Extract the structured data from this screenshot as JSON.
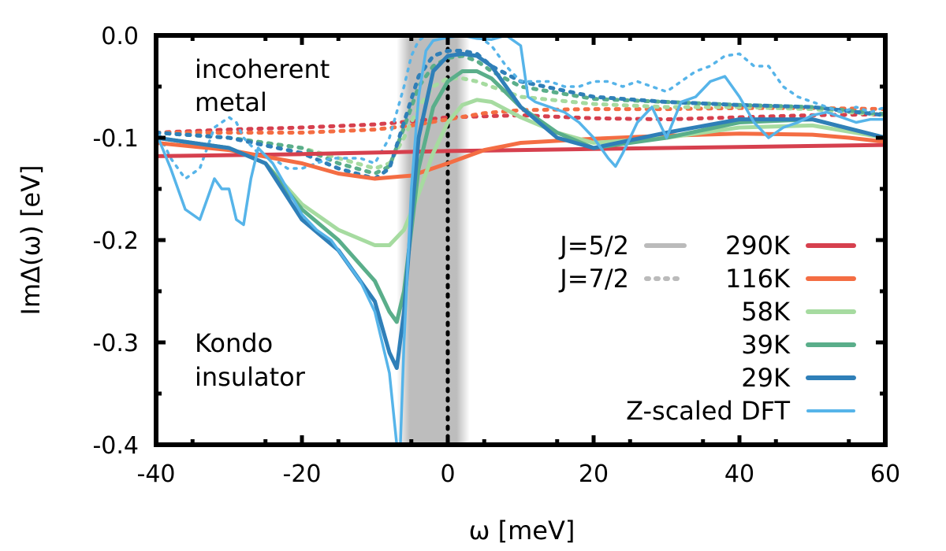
{
  "chart_data": {
    "type": "line",
    "xlabel": "ω [meV]",
    "ylabel": "ImΔ(ω) [eV]",
    "xlim": [
      -40,
      60
    ],
    "ylim": [
      -0.4,
      0.0
    ],
    "xticks": [
      "-40",
      "-20",
      "0",
      "20",
      "40",
      "60"
    ],
    "yticks": [
      "0.0",
      "-0.1",
      "-0.2",
      "-0.3",
      "-0.4"
    ],
    "gap_region": [
      -7,
      3
    ],
    "fermi_level": 0,
    "annotations": [
      "incoherent",
      "metal",
      "Kondo",
      "insulator"
    ],
    "legend_linestyles": [
      {
        "label": "J=5/2",
        "style": "solid",
        "color": "#bbbbbb"
      },
      {
        "label": "J=7/2",
        "style": "dotted",
        "color": "#bbbbbb"
      }
    ],
    "series": [
      {
        "name": "290K",
        "color": "#d6404e",
        "j52": {
          "x": [
            -40,
            -20,
            0,
            20,
            40,
            60
          ],
          "y": [
            -0.118,
            -0.116,
            -0.113,
            -0.111,
            -0.109,
            -0.107
          ]
        },
        "j72": {
          "x": [
            -40,
            -30,
            -20,
            -10,
            -5,
            0,
            10,
            20,
            30,
            40,
            50,
            60
          ],
          "y": [
            -0.095,
            -0.092,
            -0.09,
            -0.087,
            -0.084,
            -0.08,
            -0.078,
            -0.081,
            -0.082,
            -0.08,
            -0.078,
            -0.077
          ]
        }
      },
      {
        "name": "116K",
        "color": "#f46d43",
        "j52": {
          "x": [
            -40,
            -30,
            -20,
            -15,
            -10,
            -5,
            0,
            5,
            10,
            20,
            30,
            40,
            50,
            55,
            60
          ],
          "y": [
            -0.105,
            -0.112,
            -0.125,
            -0.135,
            -0.14,
            -0.137,
            -0.125,
            -0.112,
            -0.105,
            -0.101,
            -0.098,
            -0.096,
            -0.097,
            -0.1,
            -0.104
          ]
        },
        "j72": {
          "x": [
            -40,
            -30,
            -20,
            -10,
            -5,
            0,
            5,
            10,
            20,
            30,
            40,
            50,
            60
          ],
          "y": [
            -0.095,
            -0.095,
            -0.095,
            -0.092,
            -0.088,
            -0.082,
            -0.076,
            -0.073,
            -0.072,
            -0.072,
            -0.071,
            -0.071,
            -0.072
          ]
        }
      },
      {
        "name": "58K",
        "color": "#a6dba0",
        "j52": {
          "x": [
            -40,
            -30,
            -25,
            -20,
            -15,
            -10,
            -8,
            -6,
            -4,
            -2,
            0,
            2,
            4,
            6,
            10,
            15,
            20,
            30,
            40,
            50,
            60
          ],
          "y": [
            -0.1,
            -0.11,
            -0.125,
            -0.165,
            -0.19,
            -0.205,
            -0.205,
            -0.19,
            -0.155,
            -0.115,
            -0.085,
            -0.068,
            -0.063,
            -0.065,
            -0.08,
            -0.095,
            -0.105,
            -0.1,
            -0.09,
            -0.088,
            -0.1
          ]
        },
        "j72": {
          "x": [
            -40,
            -30,
            -20,
            -15,
            -10,
            -8,
            -6,
            -4,
            -2,
            0,
            2,
            4,
            6,
            10,
            20,
            30,
            40,
            50,
            60
          ],
          "y": [
            -0.095,
            -0.1,
            -0.11,
            -0.12,
            -0.13,
            -0.125,
            -0.1,
            -0.07,
            -0.05,
            -0.042,
            -0.042,
            -0.045,
            -0.05,
            -0.06,
            -0.067,
            -0.07,
            -0.07,
            -0.072,
            -0.078
          ]
        }
      },
      {
        "name": "39K",
        "color": "#5aae8a",
        "j52": {
          "x": [
            -40,
            -30,
            -25,
            -20,
            -15,
            -10,
            -8,
            -7,
            -6,
            -5,
            -4,
            -2,
            0,
            2,
            4,
            6,
            10,
            15,
            20,
            30,
            40,
            50,
            60
          ],
          "y": [
            -0.1,
            -0.11,
            -0.125,
            -0.17,
            -0.2,
            -0.24,
            -0.27,
            -0.28,
            -0.25,
            -0.19,
            -0.13,
            -0.07,
            -0.045,
            -0.035,
            -0.035,
            -0.042,
            -0.07,
            -0.095,
            -0.11,
            -0.1,
            -0.085,
            -0.082,
            -0.1
          ]
        },
        "j72": {
          "x": [
            -40,
            -30,
            -20,
            -15,
            -10,
            -8,
            -6,
            -4,
            -2,
            0,
            2,
            4,
            6,
            10,
            20,
            30,
            40,
            50,
            60
          ],
          "y": [
            -0.095,
            -0.1,
            -0.11,
            -0.125,
            -0.135,
            -0.128,
            -0.09,
            -0.05,
            -0.03,
            -0.022,
            -0.02,
            -0.025,
            -0.035,
            -0.05,
            -0.062,
            -0.065,
            -0.068,
            -0.07,
            -0.077
          ]
        }
      },
      {
        "name": "29K",
        "color": "#2f7fb8",
        "j52": {
          "x": [
            -40,
            -30,
            -25,
            -20,
            -15,
            -10,
            -8,
            -7,
            -6,
            -5,
            -4,
            -2,
            0,
            2,
            4,
            6,
            10,
            15,
            20,
            30,
            40,
            50,
            60
          ],
          "y": [
            -0.1,
            -0.11,
            -0.125,
            -0.18,
            -0.21,
            -0.26,
            -0.31,
            -0.325,
            -0.27,
            -0.18,
            -0.1,
            -0.035,
            -0.02,
            -0.018,
            -0.02,
            -0.03,
            -0.07,
            -0.1,
            -0.11,
            -0.095,
            -0.082,
            -0.082,
            -0.1
          ]
        },
        "j72": {
          "x": [
            -40,
            -30,
            -20,
            -15,
            -10,
            -8,
            -6,
            -4,
            -2,
            0,
            2,
            4,
            6,
            10,
            20,
            30,
            40,
            50,
            60
          ],
          "y": [
            -0.095,
            -0.1,
            -0.115,
            -0.13,
            -0.14,
            -0.13,
            -0.085,
            -0.04,
            -0.02,
            -0.015,
            -0.015,
            -0.018,
            -0.03,
            -0.045,
            -0.06,
            -0.065,
            -0.068,
            -0.07,
            -0.078
          ]
        }
      },
      {
        "name": "Z-scaled DFT",
        "color": "#56b4e9",
        "j52": {
          "x": [
            -40,
            -38,
            -36,
            -34,
            -33,
            -32,
            -31,
            -30,
            -29,
            -28,
            -27,
            -26,
            -24,
            -22,
            -20,
            -18,
            -16,
            -14,
            -12,
            -10,
            -8,
            -7,
            -6.5,
            -6,
            -5,
            -4,
            -3,
            -2,
            0,
            2,
            4,
            6,
            8,
            10,
            11,
            12,
            14,
            16,
            18,
            20,
            22,
            23,
            24,
            26,
            28,
            30,
            32,
            34,
            36,
            38,
            40,
            42,
            44,
            46,
            48,
            50,
            52,
            54,
            56,
            58,
            60
          ],
          "y": [
            -0.095,
            -0.13,
            -0.17,
            -0.18,
            -0.16,
            -0.14,
            -0.15,
            -0.15,
            -0.18,
            -0.185,
            -0.14,
            -0.11,
            -0.125,
            -0.15,
            -0.175,
            -0.19,
            -0.2,
            -0.22,
            -0.24,
            -0.27,
            -0.33,
            -0.4,
            -0.4,
            -0.3,
            -0.15,
            -0.06,
            -0.015,
            -0.005,
            -0.002,
            0.0,
            -0.003,
            -0.004,
            0.0,
            -0.01,
            -0.06,
            -0.065,
            -0.07,
            -0.075,
            -0.085,
            -0.1,
            -0.12,
            -0.128,
            -0.115,
            -0.085,
            -0.07,
            -0.1,
            -0.065,
            -0.06,
            -0.045,
            -0.04,
            -0.06,
            -0.085,
            -0.1,
            -0.09,
            -0.085,
            -0.078,
            -0.075,
            -0.08,
            -0.085,
            -0.082,
            -0.082
          ]
        },
        "j72": {
          "x": [
            -40,
            -38,
            -36,
            -34,
            -32,
            -30,
            -29,
            -28,
            -26,
            -24,
            -22,
            -20,
            -18,
            -16,
            -14,
            -12,
            -10,
            -8,
            -6,
            -5,
            -4,
            -3,
            -2,
            0,
            2,
            4,
            6,
            8,
            10,
            12,
            14,
            16,
            18,
            20,
            22,
            24,
            26,
            28,
            30,
            32,
            34,
            36,
            38,
            40,
            42,
            44,
            46,
            48,
            50,
            52,
            54,
            56,
            58,
            60
          ],
          "y": [
            -0.09,
            -0.12,
            -0.14,
            -0.13,
            -0.09,
            -0.08,
            -0.085,
            -0.1,
            -0.115,
            -0.12,
            -0.13,
            -0.13,
            -0.125,
            -0.12,
            -0.12,
            -0.12,
            -0.125,
            -0.1,
            -0.05,
            -0.02,
            -0.005,
            0.0,
            0.0,
            0.0,
            0.0,
            0.0,
            -0.01,
            -0.03,
            -0.045,
            -0.045,
            -0.045,
            -0.05,
            -0.05,
            -0.045,
            -0.045,
            -0.05,
            -0.045,
            -0.05,
            -0.055,
            -0.045,
            -0.035,
            -0.03,
            -0.02,
            -0.018,
            -0.03,
            -0.03,
            -0.05,
            -0.06,
            -0.065,
            -0.07,
            -0.075,
            -0.07,
            -0.075,
            -0.07
          ]
        }
      }
    ]
  }
}
